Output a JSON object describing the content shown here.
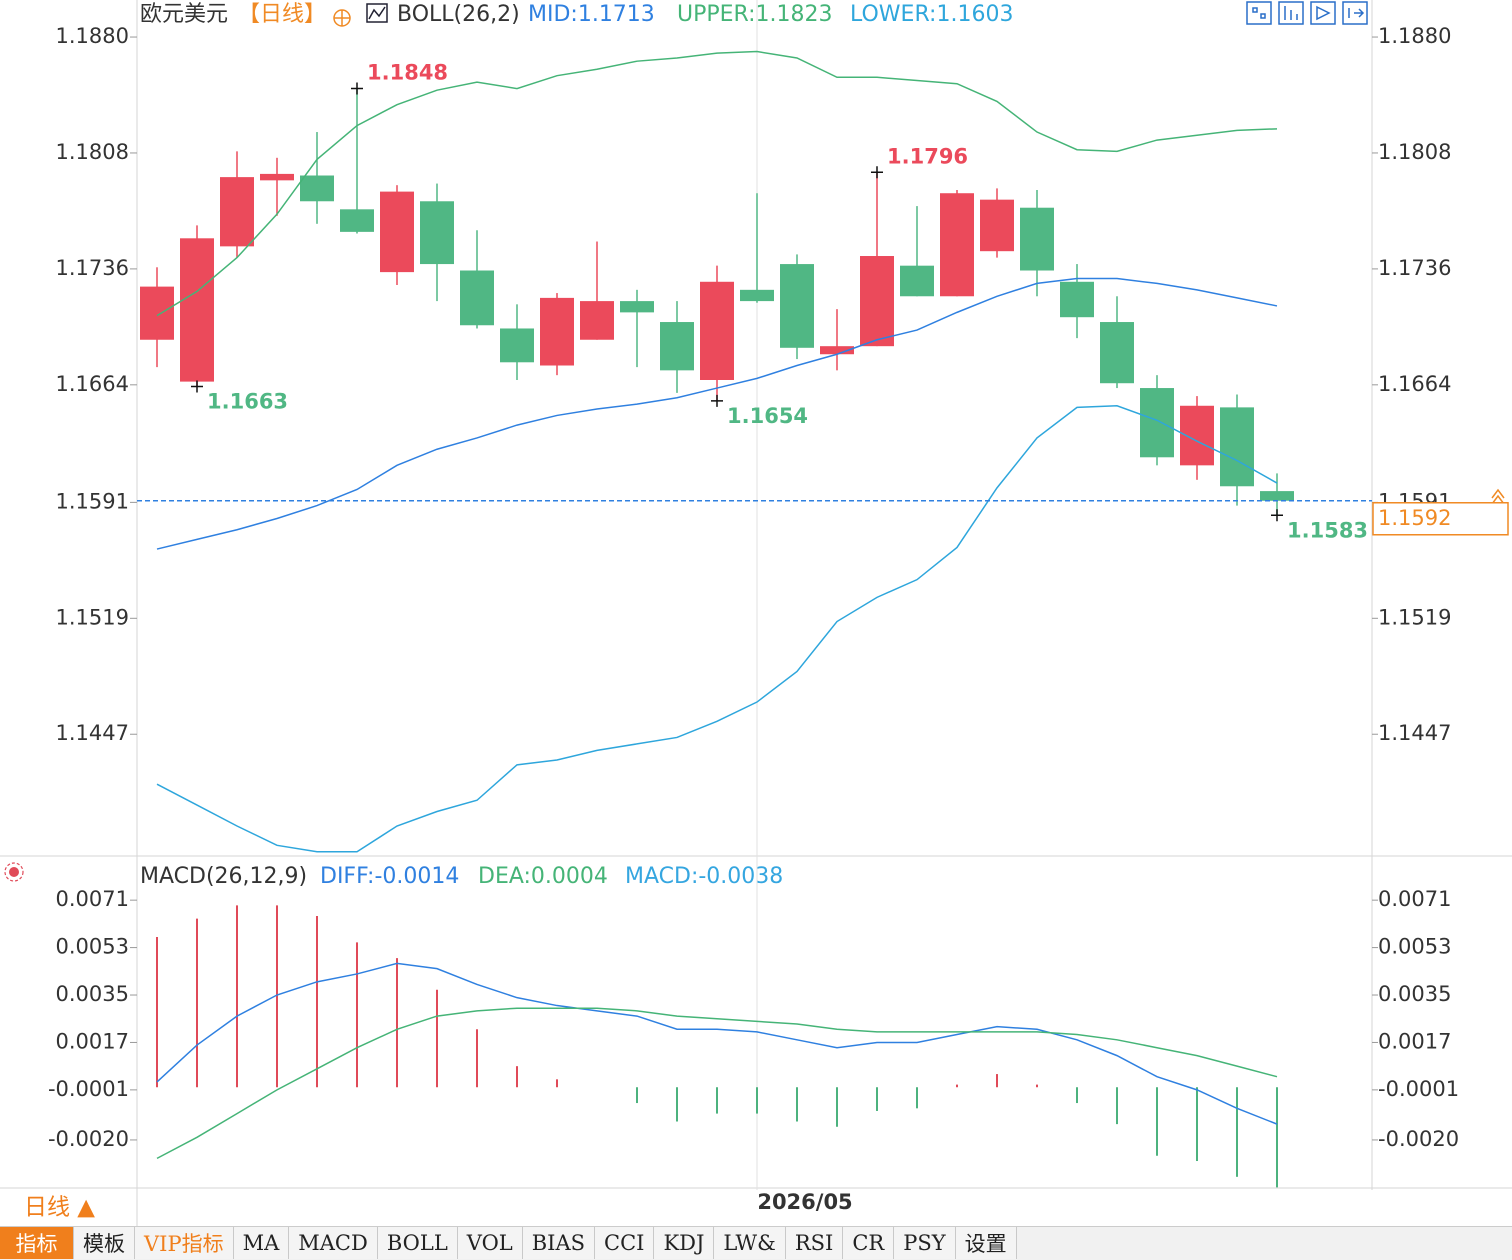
{
  "chart_data": [
    {
      "type": "candlestick",
      "title": "欧元美元",
      "period": "【日线】",
      "indicator": "BOLL(26,2)",
      "categories": [
        null,
        null,
        null,
        null,
        null,
        null,
        null,
        null,
        null,
        null,
        null,
        null,
        null,
        null,
        null,
        "2026/05",
        null,
        null,
        null,
        null,
        null,
        null,
        null,
        null,
        null,
        null,
        null,
        null,
        null
      ],
      "open": [
        1.1692,
        1.1666,
        1.175,
        1.1791,
        1.1794,
        1.1773,
        1.1734,
        1.1778,
        1.1735,
        1.1699,
        1.1676,
        1.1692,
        1.1716,
        1.1703,
        1.1667,
        1.1723,
        1.1739,
        1.1683,
        1.1688,
        1.1738,
        1.1719,
        1.1747,
        1.1774,
        1.1728,
        1.1703,
        1.1662,
        1.1614,
        1.165,
        1.1598
      ],
      "high": [
        1.1737,
        1.1763,
        1.1809,
        1.1805,
        1.1821,
        1.1848,
        1.1788,
        1.1789,
        1.176,
        1.1714,
        1.1721,
        1.1753,
        1.1723,
        1.1716,
        1.1738,
        1.1783,
        1.1745,
        1.1711,
        1.1796,
        1.1775,
        1.1785,
        1.1786,
        1.1785,
        1.1739,
        1.1719,
        1.167,
        1.1657,
        1.1658,
        1.1609
      ],
      "low": [
        1.1675,
        1.1663,
        1.1743,
        1.1769,
        1.1764,
        1.1758,
        1.1726,
        1.1716,
        1.1699,
        1.1667,
        1.167,
        1.1692,
        1.1675,
        1.1659,
        1.1654,
        1.1715,
        1.168,
        1.1673,
        1.1688,
        1.1719,
        1.1719,
        1.1743,
        1.1719,
        1.1693,
        1.1662,
        1.1614,
        1.1605,
        1.1589,
        1.1583
      ],
      "close": [
        1.1725,
        1.1755,
        1.1793,
        1.1795,
        1.1778,
        1.1759,
        1.1784,
        1.1739,
        1.1701,
        1.1678,
        1.1718,
        1.1716,
        1.1709,
        1.1673,
        1.1728,
        1.1716,
        1.1687,
        1.1688,
        1.1744,
        1.1719,
        1.1783,
        1.1779,
        1.1735,
        1.1706,
        1.1665,
        1.1619,
        1.1651,
        1.1601,
        1.1592
      ],
      "up_color": "#eb4a5b",
      "down_color": "#50b784",
      "series": [
        {
          "name": "MID:1.1713",
          "color": "#2f80e0",
          "values": [
            1.1562,
            1.1568,
            1.1574,
            1.1581,
            1.1589,
            1.1599,
            1.1614,
            1.1624,
            1.1631,
            1.1639,
            1.1645,
            1.1649,
            1.1652,
            1.1656,
            1.1662,
            1.1668,
            1.1676,
            1.1683,
            1.1692,
            1.1698,
            1.1709,
            1.1719,
            1.1727,
            1.173,
            1.173,
            1.1727,
            1.1723,
            1.1718,
            1.1713
          ]
        },
        {
          "name": "UPPER:1.1823",
          "color": "#45b477",
          "values": [
            1.1707,
            1.1722,
            1.1743,
            1.177,
            1.1804,
            1.1825,
            1.1838,
            1.1847,
            1.1852,
            1.1848,
            1.1856,
            1.186,
            1.1865,
            1.1867,
            1.187,
            1.1871,
            1.1867,
            1.1855,
            1.1855,
            1.1853,
            1.1851,
            1.184,
            1.1821,
            1.181,
            1.1809,
            1.1816,
            1.1819,
            1.1822,
            1.1823
          ]
        },
        {
          "name": "LOWER:1.1603",
          "color": "#2ea6dc",
          "values": [
            1.1416,
            1.1403,
            1.139,
            1.1378,
            1.1374,
            1.1374,
            1.139,
            1.1399,
            1.1406,
            1.1428,
            1.1431,
            1.1437,
            1.1441,
            1.1445,
            1.1455,
            1.1467,
            1.1486,
            1.1517,
            1.1532,
            1.1543,
            1.1563,
            1.16,
            1.1631,
            1.165,
            1.1651,
            1.1642,
            1.1629,
            1.1617,
            1.1603
          ]
        }
      ],
      "ylim": [
        1.1372,
        1.1903
      ],
      "yticks": [
        {
          "value": 1.188,
          "label": "1.1880"
        },
        1.1808,
        1.1736,
        1.1664,
        1.1591,
        1.1519,
        1.1447
      ],
      "extremes": [
        1.1848,
        1.1663,
        1.1654,
        1.1796,
        1.1583
      ],
      "last_price": 1.1592,
      "last_price_color": "#f08a24",
      "last_price_line_color": "#2f80e0"
    },
    {
      "type": "macd",
      "title": "MACD(26,12,9)",
      "values": [
        0.0057,
        0.0064,
        0.0069,
        0.0069,
        0.0065,
        0.0055,
        0.0049,
        0.0037,
        0.0022,
        0.0008,
        0.0003,
        0,
        -0.0006,
        -0.0013,
        -0.001,
        -0.001,
        -0.0013,
        -0.0015,
        -0.0009,
        -0.0008,
        0.0001,
        0.0005,
        0.0001,
        -0.0006,
        -0.0014,
        -0.0026,
        -0.0028,
        -0.0034,
        -0.0038
      ],
      "histogram_label": "MACD:-0.0038",
      "histogram_label_color": "#35a6e0",
      "up_color": "#e04a58",
      "down_color": "#4cb27e",
      "series": [
        {
          "name": "DIFF:-0.0014",
          "color": "#2f80e0",
          "values": [
            0.0002,
            0.0016,
            0.0027,
            0.0035,
            0.004,
            0.0043,
            0.0047,
            0.0045,
            0.0039,
            0.0034,
            0.0031,
            0.0029,
            0.0027,
            0.0022,
            0.0022,
            0.0021,
            0.0018,
            0.0015,
            0.0017,
            0.0017,
            0.002,
            0.0023,
            0.0022,
            0.0018,
            0.0012,
            0.0004,
            -0.0001,
            -0.0008,
            -0.0014
          ]
        },
        {
          "name": "DEA:0.0004",
          "color": "#45b477",
          "values": [
            -0.0027,
            -0.0019,
            -0.001,
            -0.0001,
            0.0007,
            0.0015,
            0.0022,
            0.0027,
            0.0029,
            0.003,
            0.003,
            0.003,
            0.0029,
            0.0027,
            0.0026,
            0.0025,
            0.0024,
            0.0022,
            0.0021,
            0.0021,
            0.0021,
            0.0021,
            0.0021,
            0.002,
            0.0018,
            0.0015,
            0.0012,
            0.0008,
            0.0004
          ]
        }
      ],
      "ylim": [
        -0.0039,
        0.0087
      ],
      "yticks": [
        0.0071,
        0.0053,
        0.0035,
        0.0017,
        -0.0001,
        {
          "value": -0.002,
          "label": "-0.0020"
        }
      ]
    }
  ],
  "footer": {
    "period_button": "日线 ▲",
    "tabs": [
      "指标",
      "模板",
      "VIP指标",
      "MA",
      "MACD",
      "BOLL",
      "VOL",
      "BIAS",
      "CCI",
      "KDJ",
      "LW&",
      "RSI",
      "CR",
      "PSY",
      "设置"
    ]
  }
}
